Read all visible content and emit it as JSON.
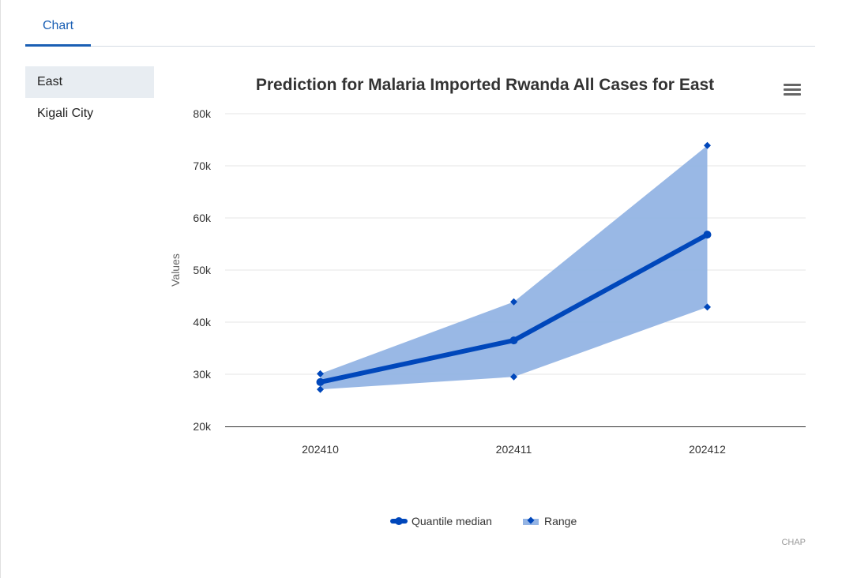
{
  "tabs": [
    {
      "label": "Chart"
    }
  ],
  "sidebar": {
    "items": [
      {
        "label": "East",
        "active": true
      },
      {
        "label": "Kigali City",
        "active": false
      }
    ]
  },
  "chart_data": {
    "type": "line",
    "title": "Prediction for Malaria Imported Rwanda All Cases for East",
    "xlabel": "",
    "ylabel": "Values",
    "categories": [
      "202410",
      "202411",
      "202412"
    ],
    "ylim": [
      20000,
      80000
    ],
    "yticks": [
      20000,
      30000,
      40000,
      50000,
      60000,
      70000,
      80000
    ],
    "ytick_labels": [
      "20k",
      "30k",
      "40k",
      "50k",
      "60k",
      "70k",
      "80k"
    ],
    "series": [
      {
        "name": "Quantile median",
        "type": "line",
        "color": "#0047bb",
        "values": [
          28500,
          36500,
          56800
        ]
      },
      {
        "name": "Range",
        "type": "arearange",
        "color": "#94b4e4",
        "low": [
          27100,
          29500,
          42900
        ],
        "high": [
          30100,
          43900,
          73900
        ]
      }
    ],
    "legend": "bottom-center",
    "credits": "CHAP",
    "grid": true
  }
}
